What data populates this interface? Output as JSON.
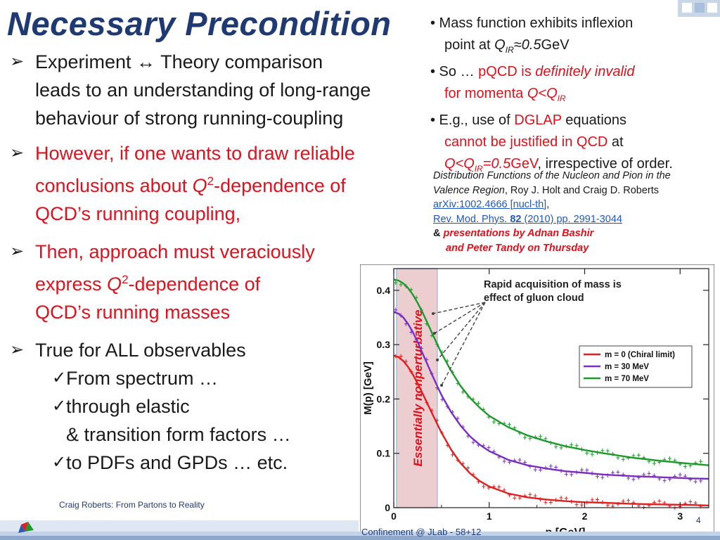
{
  "slide": {
    "title": "Necessary Precondition",
    "left_bullets": {
      "b1": {
        "l1": "Experiment ↔ Theory comparison",
        "l2": "leads to an understanding of long-range",
        "l3": "behaviour of strong running-coupling"
      },
      "b2": {
        "l1": "However, if one wants to draw reliable",
        "l2_pre": "conclusions about ",
        "q": "Q",
        "sup": "2",
        "l2_post": "-dependence of",
        "l3": "QCD’s running coupling,"
      },
      "b3": {
        "l1": "Then, approach must veraciously",
        "l2_pre": "express ",
        "q": "Q",
        "sup": "2",
        "l2_post": "-dependence of",
        "l3": "QCD’s running masses"
      },
      "b4": {
        "l1": "True for ALL observables",
        "s1": "From spectrum …",
        "s2": "through elastic",
        "s2b": "& transition form factors …",
        "s3": "to PDFs and GPDs … etc."
      }
    },
    "right_bullets": {
      "r1_pre": "• Mass function exhibits inflexion",
      "r1b_pre": "point at ",
      "r1b_q": "Q",
      "r1b_sub": "IR",
      "r1b_val": "≈0.5",
      "r1b_unit": "GeV",
      "r2_pre": "• So … ",
      "r2_pqcd": "pQCD",
      "r2_is": " is ",
      "r2_def": "definitely invalid",
      "r2b_pre": "for momenta ",
      "r2b_q": "Q<Q",
      "r2b_sub": "IR",
      "r3_pre": "• E.g., use of ",
      "r3_dglap": "DGLAP",
      "r3_post": " equations",
      "r3b_red": "cannot be justified in QCD",
      "r3b_post": " at",
      "r3c_q": "Q<Q",
      "r3c_sub": "IR",
      "r3c_val": "=0.5",
      "r3c_unit": "GeV",
      "r3c_post": ", irrespective of order."
    },
    "reference": {
      "title_it": "Distribution Functions of the Nucleon and Pion in the",
      "title_it2": "Valence Region",
      "authors": ", Roy J. Holt and Craig D. Roberts",
      "arxiv": "arXiv:1002.4666 [nucl-th]",
      "comma": ",",
      "rmp_pre": "Rev. Mod. Phys. ",
      "rmp_vol": "82",
      "rmp_post": " (2010) pp. 2991-3044",
      "amp": "& ",
      "pres1": "presentations by Adnan Bashir",
      "pres2": "and Peter Tandy on Thursday"
    },
    "footer": {
      "author": "Craig Roberts: From Partons to Reality",
      "conference": "Confinement @ JLab - 58+12",
      "page": "4"
    }
  },
  "chart_data": {
    "type": "line",
    "xlabel": "p [GeV]",
    "ylabel": "M(p) [GeV]",
    "xlim": [
      0,
      3.3
    ],
    "ylim": [
      0,
      0.44
    ],
    "x_ticks": [
      "0",
      "1",
      "2",
      "3"
    ],
    "y_ticks": [
      "0",
      "0.1",
      "0.2",
      "0.3",
      "0.4"
    ],
    "annotation": "Rapid acquisition of mass is effect of gluon cloud",
    "band_label": "Essentially nonperturbative",
    "band_range": [
      0,
      0.5
    ],
    "legend_position": "right",
    "series": [
      {
        "name": "m = 0 (Chiral limit)",
        "color": "#e02020",
        "x": [
          0,
          0.05,
          0.1,
          0.15,
          0.2,
          0.25,
          0.3,
          0.4,
          0.5,
          0.6,
          0.7,
          0.8,
          0.9,
          1.0,
          1.2,
          1.4,
          1.6,
          1.8,
          2.0,
          2.2,
          2.5,
          2.8,
          3.1,
          3.3
        ],
        "y": [
          0.28,
          0.277,
          0.27,
          0.259,
          0.245,
          0.229,
          0.211,
          0.174,
          0.138,
          0.107,
          0.082,
          0.063,
          0.049,
          0.039,
          0.026,
          0.019,
          0.015,
          0.012,
          0.01,
          0.009,
          0.007,
          0.006,
          0.005,
          0.004
        ]
      },
      {
        "name": "m = 30 MeV",
        "color": "#7a2fc2",
        "x": [
          0,
          0.05,
          0.1,
          0.15,
          0.2,
          0.25,
          0.3,
          0.4,
          0.5,
          0.6,
          0.7,
          0.8,
          0.9,
          1.0,
          1.2,
          1.4,
          1.6,
          1.8,
          2.0,
          2.2,
          2.5,
          2.8,
          3.1,
          3.3
        ],
        "y": [
          0.36,
          0.357,
          0.35,
          0.338,
          0.323,
          0.305,
          0.285,
          0.245,
          0.207,
          0.176,
          0.151,
          0.131,
          0.116,
          0.104,
          0.088,
          0.078,
          0.072,
          0.067,
          0.064,
          0.061,
          0.058,
          0.056,
          0.054,
          0.053
        ]
      },
      {
        "name": "m = 70 MeV",
        "color": "#1e9a2a",
        "x": [
          0,
          0.05,
          0.1,
          0.15,
          0.2,
          0.25,
          0.3,
          0.4,
          0.5,
          0.6,
          0.7,
          0.8,
          0.9,
          1.0,
          1.2,
          1.4,
          1.6,
          1.8,
          2.0,
          2.2,
          2.5,
          2.8,
          3.1,
          3.3
        ],
        "y": [
          0.42,
          0.418,
          0.413,
          0.404,
          0.392,
          0.377,
          0.36,
          0.322,
          0.284,
          0.252,
          0.224,
          0.202,
          0.184,
          0.169,
          0.148,
          0.133,
          0.122,
          0.113,
          0.106,
          0.1,
          0.092,
          0.086,
          0.081,
          0.078
        ]
      }
    ]
  }
}
